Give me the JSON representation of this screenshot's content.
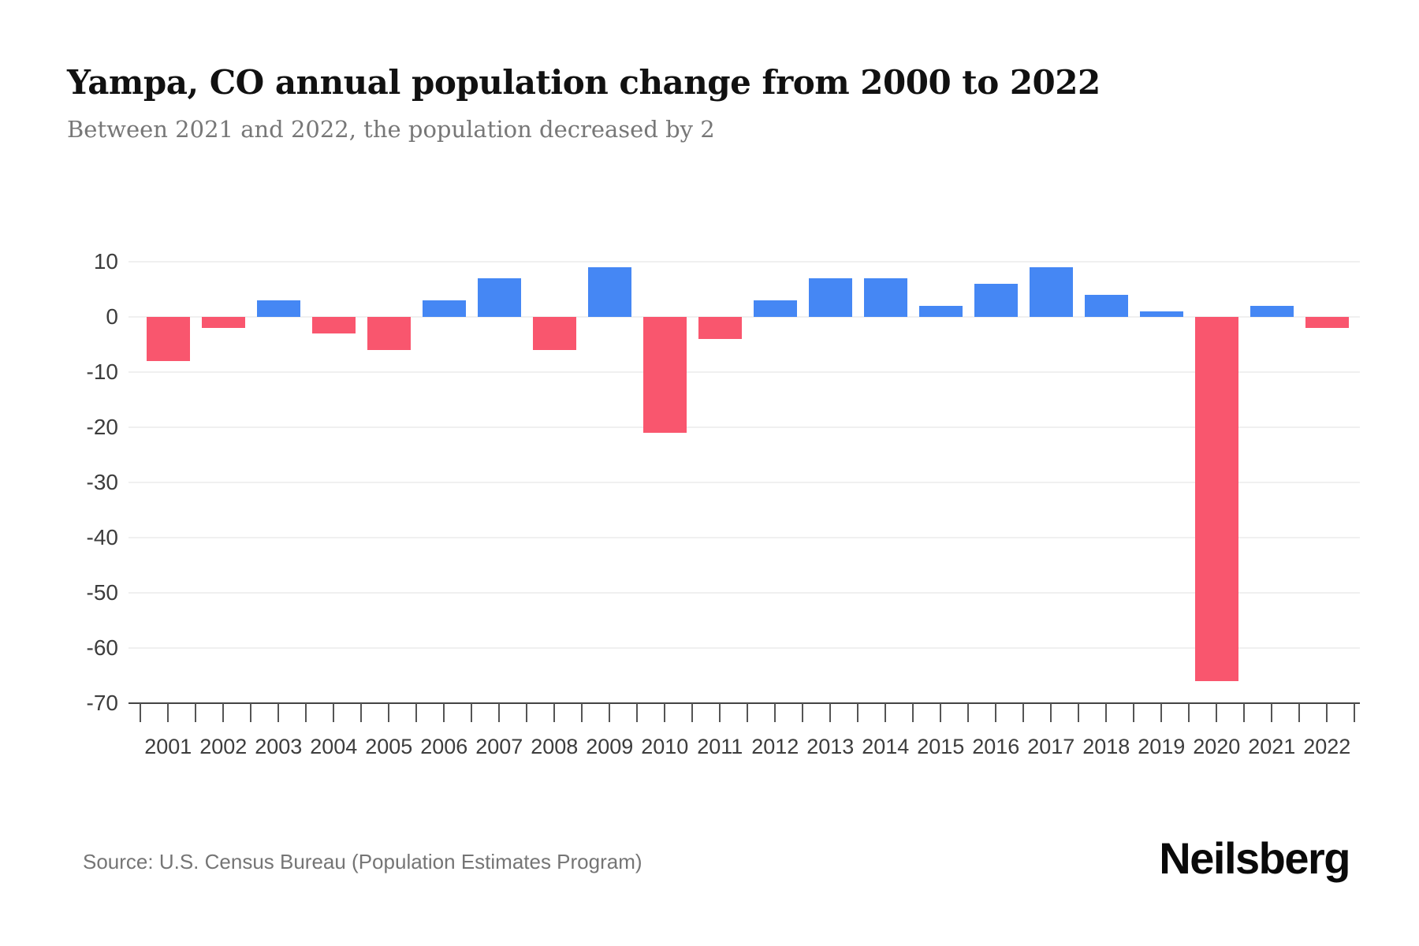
{
  "header": {
    "title": "Yampa, CO annual population change from 2000 to 2022",
    "subtitle": "Between 2021 and 2022, the population decreased by 2"
  },
  "chart_data": {
    "type": "bar",
    "title": "Yampa, CO annual population change from 2000 to 2022",
    "subtitle": "Between 2021 and 2022, the population decreased by 2",
    "categories": [
      "2001",
      "2002",
      "2003",
      "2004",
      "2005",
      "2006",
      "2007",
      "2008",
      "2009",
      "2010",
      "2011",
      "2012",
      "2013",
      "2014",
      "2015",
      "2016",
      "2017",
      "2018",
      "2019",
      "2020",
      "2021",
      "2022"
    ],
    "values": [
      -8,
      -2,
      3,
      -3,
      -6,
      3,
      7,
      -6,
      9,
      -21,
      -4,
      3,
      7,
      7,
      2,
      6,
      9,
      4,
      1,
      -66,
      2,
      -2
    ],
    "series_name": "Annual population change",
    "xlabel": "",
    "ylabel": "",
    "ylim": [
      -70,
      10
    ],
    "yticks": [
      10,
      0,
      -10,
      -20,
      -30,
      -40,
      -50,
      -60,
      -70
    ],
    "grid": "horizontal",
    "legend": "none",
    "positive_color": "#4587f4",
    "negative_color": "#f9566e"
  },
  "footer": {
    "source": "Source: U.S. Census Bureau (Population Estimates Program)",
    "logo": "Neilsberg"
  }
}
